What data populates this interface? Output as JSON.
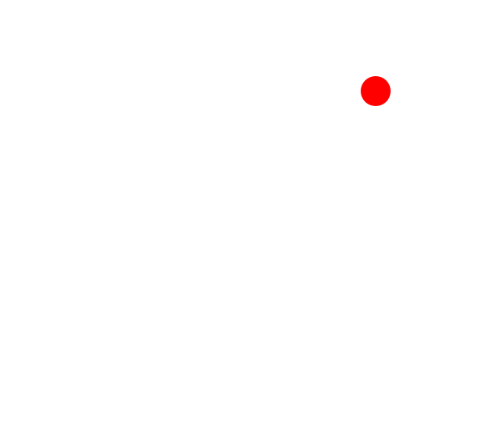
{
  "canvas": {
    "background_color": "#ffffff"
  },
  "target_dot": {
    "shape": "circle",
    "color": "#ff0000"
  }
}
